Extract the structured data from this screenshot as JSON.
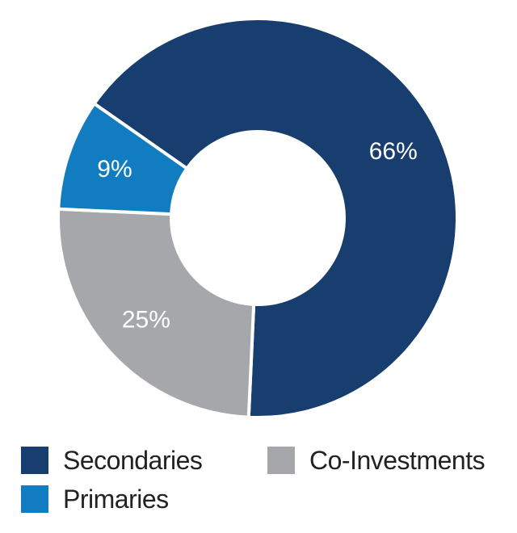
{
  "chart_data": {
    "type": "pie",
    "variant": "donut",
    "slices": [
      {
        "name": "Secondaries",
        "value": 66,
        "label": "66%",
        "color": "#173e6e"
      },
      {
        "name": "Co-Investments",
        "value": 25,
        "label": "25%",
        "color": "#a6a7aa"
      },
      {
        "name": "Primaries",
        "value": 9,
        "label": "9%",
        "color": "#127cc1"
      }
    ],
    "legend": {
      "placement": "bottom",
      "entries": [
        {
          "name": "Secondaries",
          "color": "#173e6e"
        },
        {
          "name": "Co-Investments",
          "color": "#a6a7aa"
        },
        {
          "name": "Primaries",
          "color": "#127cc1"
        }
      ]
    }
  }
}
